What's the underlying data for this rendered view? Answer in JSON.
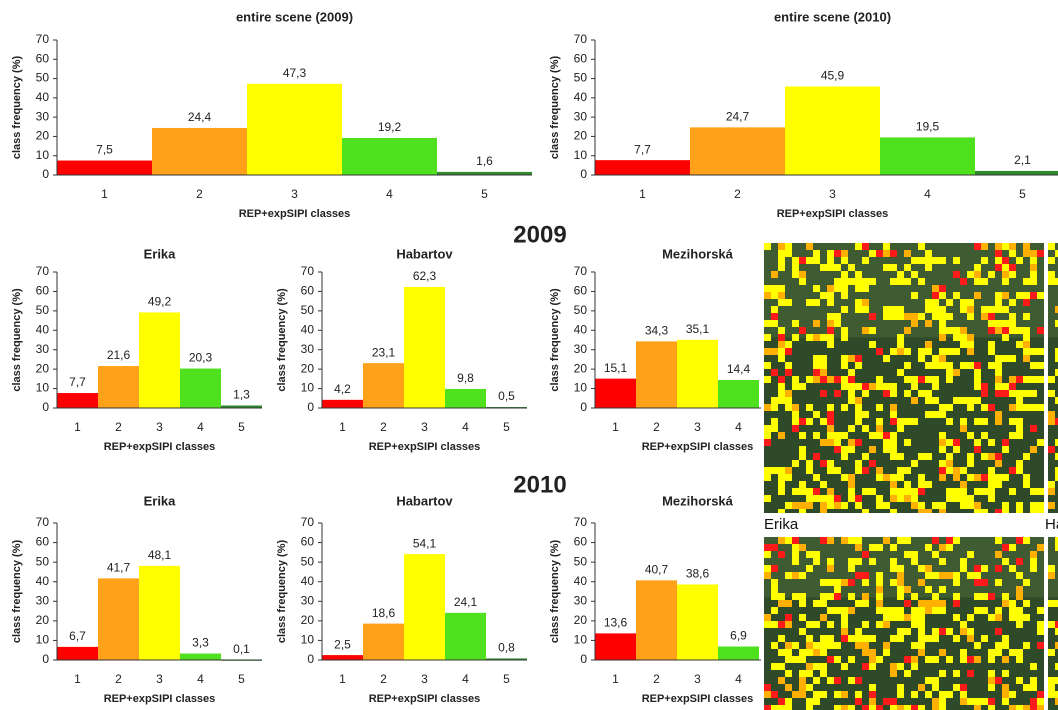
{
  "chart_data": [
    {
      "type": "bar",
      "title": "entire scene (2009)",
      "x_label": "REP+expSIPI classes",
      "y_label": "class frequency (%)",
      "categories": [
        "1",
        "2",
        "3",
        "4",
        "5"
      ],
      "values": [
        7.5,
        24.4,
        47.3,
        19.2,
        1.6
      ],
      "value_labels": [
        "7,5",
        "24,4",
        "47,3",
        "19,2",
        "1,6"
      ],
      "colors": [
        "#ff0000",
        "#ffa21a",
        "#ffff00",
        "#4fe01e",
        "#2e8a2e"
      ],
      "ylim": [
        0,
        70
      ],
      "yticks": [
        0,
        10,
        20,
        30,
        40,
        50,
        60,
        70
      ]
    },
    {
      "type": "bar",
      "title": "entire scene (2010)",
      "x_label": "REP+expSIPI classes",
      "y_label": "class frequency (%)",
      "categories": [
        "1",
        "2",
        "3",
        "4",
        "5"
      ],
      "values": [
        7.7,
        24.7,
        45.9,
        19.5,
        2.1
      ],
      "value_labels": [
        "7,7",
        "24,7",
        "45,9",
        "19,5",
        "2,1"
      ],
      "colors": [
        "#ff0000",
        "#ffa21a",
        "#ffff00",
        "#4fe01e",
        "#2e8a2e"
      ],
      "ylim": [
        0,
        70
      ],
      "yticks": [
        0,
        10,
        20,
        30,
        40,
        50,
        60,
        70
      ]
    },
    {
      "type": "bar",
      "title": "Erika",
      "x_label": "REP+expSIPI classes",
      "y_label": "class frequency (%)",
      "categories": [
        "1",
        "2",
        "3",
        "4",
        "5"
      ],
      "values": [
        7.7,
        21.6,
        49.2,
        20.3,
        1.3
      ],
      "value_labels": [
        "7,7",
        "21,6",
        "49,2",
        "20,3",
        "1,3"
      ],
      "colors": [
        "#ff0000",
        "#ffa21a",
        "#ffff00",
        "#4fe01e",
        "#2e8a2e"
      ],
      "ylim": [
        0,
        70
      ],
      "yticks": [
        0,
        10,
        20,
        30,
        40,
        50,
        60,
        70
      ]
    },
    {
      "type": "bar",
      "title": "Habartov",
      "x_label": "REP+expSIPI classes",
      "y_label": "class frequency (%)",
      "categories": [
        "1",
        "2",
        "3",
        "4",
        "5"
      ],
      "values": [
        4.2,
        23.1,
        62.3,
        9.8,
        0.5
      ],
      "value_labels": [
        "4,2",
        "23,1",
        "62,3",
        "9,8",
        "0,5"
      ],
      "colors": [
        "#ff0000",
        "#ffa21a",
        "#ffff00",
        "#4fe01e",
        "#2e8a2e"
      ],
      "ylim": [
        0,
        70
      ],
      "yticks": [
        0,
        10,
        20,
        30,
        40,
        50,
        60,
        70
      ]
    },
    {
      "type": "bar",
      "title": "Mezihorská",
      "x_label": "REP+expSIPI classes",
      "y_label": "class frequency (%)",
      "categories": [
        "1",
        "2",
        "3",
        "4"
      ],
      "values": [
        15.1,
        34.3,
        35.1,
        14.4
      ],
      "value_labels": [
        "15,1",
        "34,3",
        "35,1",
        "14,4"
      ],
      "colors": [
        "#ff0000",
        "#ffa21a",
        "#ffff00",
        "#4fe01e"
      ],
      "ylim": [
        0,
        70
      ],
      "yticks": [
        0,
        10,
        20,
        30,
        40,
        50,
        60,
        70
      ]
    },
    {
      "type": "bar",
      "title": "Erika",
      "x_label": "REP+expSIPI classes",
      "y_label": "class frequency (%)",
      "categories": [
        "1",
        "2",
        "3",
        "4",
        "5"
      ],
      "values": [
        6.7,
        41.7,
        48.1,
        3.3,
        0.1
      ],
      "value_labels": [
        "6,7",
        "41,7",
        "48,1",
        "3,3",
        "0,1"
      ],
      "colors": [
        "#ff0000",
        "#ffa21a",
        "#ffff00",
        "#4fe01e",
        "#2e8a2e"
      ],
      "ylim": [
        0,
        70
      ],
      "yticks": [
        0,
        10,
        20,
        30,
        40,
        50,
        60,
        70
      ]
    },
    {
      "type": "bar",
      "title": "Habartov",
      "x_label": "REP+expSIPI classes",
      "y_label": "class frequency (%)",
      "categories": [
        "1",
        "2",
        "3",
        "4",
        "5"
      ],
      "values": [
        2.5,
        18.6,
        54.1,
        24.1,
        0.8
      ],
      "value_labels": [
        "2,5",
        "18,6",
        "54,1",
        "24,1",
        "0,8"
      ],
      "colors": [
        "#ff0000",
        "#ffa21a",
        "#ffff00",
        "#4fe01e",
        "#2e8a2e"
      ],
      "ylim": [
        0,
        70
      ],
      "yticks": [
        0,
        10,
        20,
        30,
        40,
        50,
        60,
        70
      ]
    },
    {
      "type": "bar",
      "title": "Mezihorská",
      "x_label": "REP+expSIPI classes",
      "y_label": "class frequency (%)",
      "categories": [
        "1",
        "2",
        "3",
        "4"
      ],
      "values": [
        13.6,
        40.7,
        38.6,
        6.9
      ],
      "value_labels": [
        "13,6",
        "40,7",
        "38,6",
        "6,9"
      ],
      "colors": [
        "#ff0000",
        "#ffa21a",
        "#ffff00",
        "#4fe01e"
      ],
      "ylim": [
        0,
        70
      ],
      "yticks": [
        0,
        10,
        20,
        30,
        40,
        50,
        60,
        70
      ]
    }
  ],
  "headings": [
    "2009",
    "2010"
  ],
  "image_labels": [
    "Erika",
    "Ha"
  ]
}
